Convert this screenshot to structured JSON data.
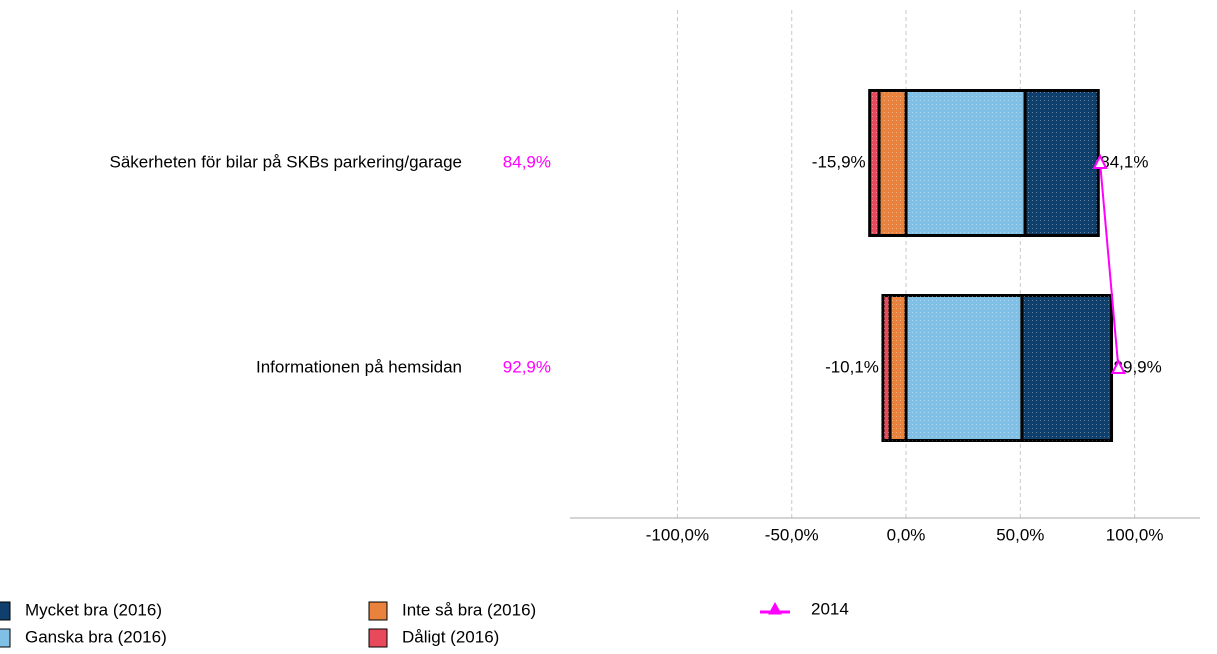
{
  "chart_data": {
    "type": "diverging_stacked_bar",
    "categories": [
      "Säkerheten för bilar på SKBs parkering/garage",
      "Informationen på hemsidan"
    ],
    "series": [
      {
        "name": "Mycket bra (2016)",
        "color": "#0e3f6d",
        "values": [
          32.0,
          39.2
        ]
      },
      {
        "name": "Ganska bra (2016)",
        "color": "#80bfe6",
        "values": [
          52.1,
          50.7
        ]
      },
      {
        "name": "Inte så bra (2016)",
        "color": "#e8823d",
        "values": [
          -11.8,
          -7.0
        ]
      },
      {
        "name": "Dåligt (2016)",
        "color": "#e84a5b",
        "values": [
          -4.1,
          -3.1
        ]
      },
      {
        "name": "2014",
        "color": "#ff00ff",
        "type": "line",
        "values": [
          84.9,
          92.9
        ],
        "value_labels": [
          "84,9%",
          "92,9%"
        ]
      }
    ],
    "negative_totals": {
      "values": [
        -15.9,
        -10.1
      ],
      "value_labels": [
        "-15,9%",
        "-10,1%"
      ]
    },
    "positive_totals": {
      "values": [
        84.1,
        89.9
      ],
      "value_labels": [
        "84,1%",
        "89,9%"
      ]
    },
    "xlim": [
      -147,
      128.6
    ],
    "xticks": [
      {
        "value": -100,
        "label": "-100,0%"
      },
      {
        "value": -50,
        "label": "-50,0%"
      },
      {
        "value": 0,
        "label": "0,0%"
      },
      {
        "value": 50,
        "label": "50,0%"
      },
      {
        "value": 100,
        "label": "100,0%"
      }
    ],
    "grid": true
  }
}
